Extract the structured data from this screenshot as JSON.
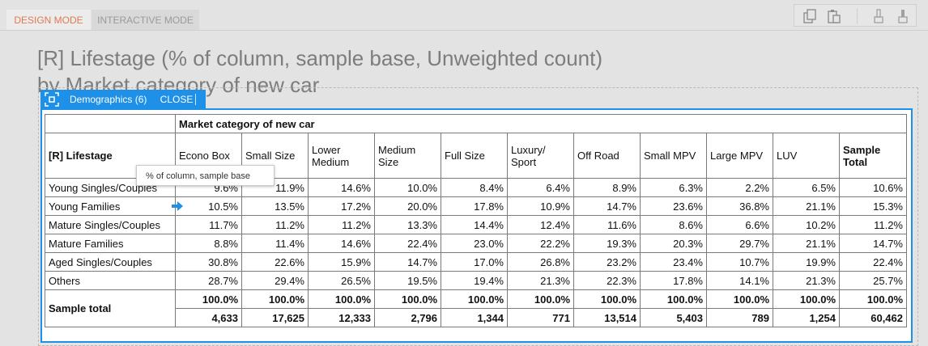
{
  "modes": {
    "design": "DESIGN MODE",
    "interactive": "INTERACTIVE MODE"
  },
  "toolbar": {
    "icons": [
      "copy-icon",
      "paste-icon",
      "brush-outline-icon",
      "brush-filled-icon"
    ]
  },
  "title": {
    "line1": "[R] Lifestage (% of column, sample base, Unweighted count)",
    "line2": "by Market category of new car"
  },
  "selection": {
    "label": "Demographics (6)",
    "close": "CLOSE",
    "accent": "#1e90e8"
  },
  "tooltip": "% of column, sample base",
  "table": {
    "row_header": "[R] Lifestage",
    "banner": "Market category of new car",
    "columns": [
      "Econo Box",
      "Small Size",
      "Lower Medium",
      "Medium Size",
      "Full Size",
      "Luxury/ Sport",
      "Off Road",
      "Small MPV",
      "Large MPV",
      "LUV",
      "Sample Total"
    ],
    "rows": [
      {
        "label": "Young Singles/Couples",
        "values": [
          "9.6%",
          "11.9%",
          "14.6%",
          "10.0%",
          "8.4%",
          "6.4%",
          "8.9%",
          "6.3%",
          "2.2%",
          "6.5%",
          "10.6%"
        ]
      },
      {
        "label": "Young Families",
        "values": [
          "10.5%",
          "13.5%",
          "17.2%",
          "20.0%",
          "17.8%",
          "10.9%",
          "14.7%",
          "23.6%",
          "36.8%",
          "21.1%",
          "15.3%"
        ]
      },
      {
        "label": "Mature Singles/Couples",
        "values": [
          "11.7%",
          "11.2%",
          "11.2%",
          "13.3%",
          "14.4%",
          "12.4%",
          "11.6%",
          "8.6%",
          "6.6%",
          "10.2%",
          "11.2%"
        ]
      },
      {
        "label": "Mature Families",
        "values": [
          "8.8%",
          "11.4%",
          "14.6%",
          "22.4%",
          "23.0%",
          "22.2%",
          "19.3%",
          "20.3%",
          "29.7%",
          "21.1%",
          "14.7%"
        ]
      },
      {
        "label": "Aged Singles/Couples",
        "values": [
          "30.8%",
          "22.6%",
          "15.9%",
          "14.7%",
          "17.0%",
          "26.8%",
          "23.2%",
          "23.4%",
          "10.7%",
          "19.9%",
          "22.4%"
        ]
      },
      {
        "label": "Others",
        "values": [
          "28.7%",
          "29.4%",
          "26.5%",
          "19.5%",
          "19.4%",
          "21.3%",
          "22.3%",
          "17.8%",
          "14.1%",
          "21.3%",
          "25.7%"
        ]
      }
    ],
    "total_label": "Sample total",
    "total_percent": [
      "100.0%",
      "100.0%",
      "100.0%",
      "100.0%",
      "100.0%",
      "100.0%",
      "100.0%",
      "100.0%",
      "100.0%",
      "100.0%",
      "100.0%"
    ],
    "total_counts": [
      "4,633",
      "17,625",
      "12,333",
      "2,796",
      "1,344",
      "771",
      "13,514",
      "5,403",
      "789",
      "1,254",
      "60,462"
    ]
  }
}
